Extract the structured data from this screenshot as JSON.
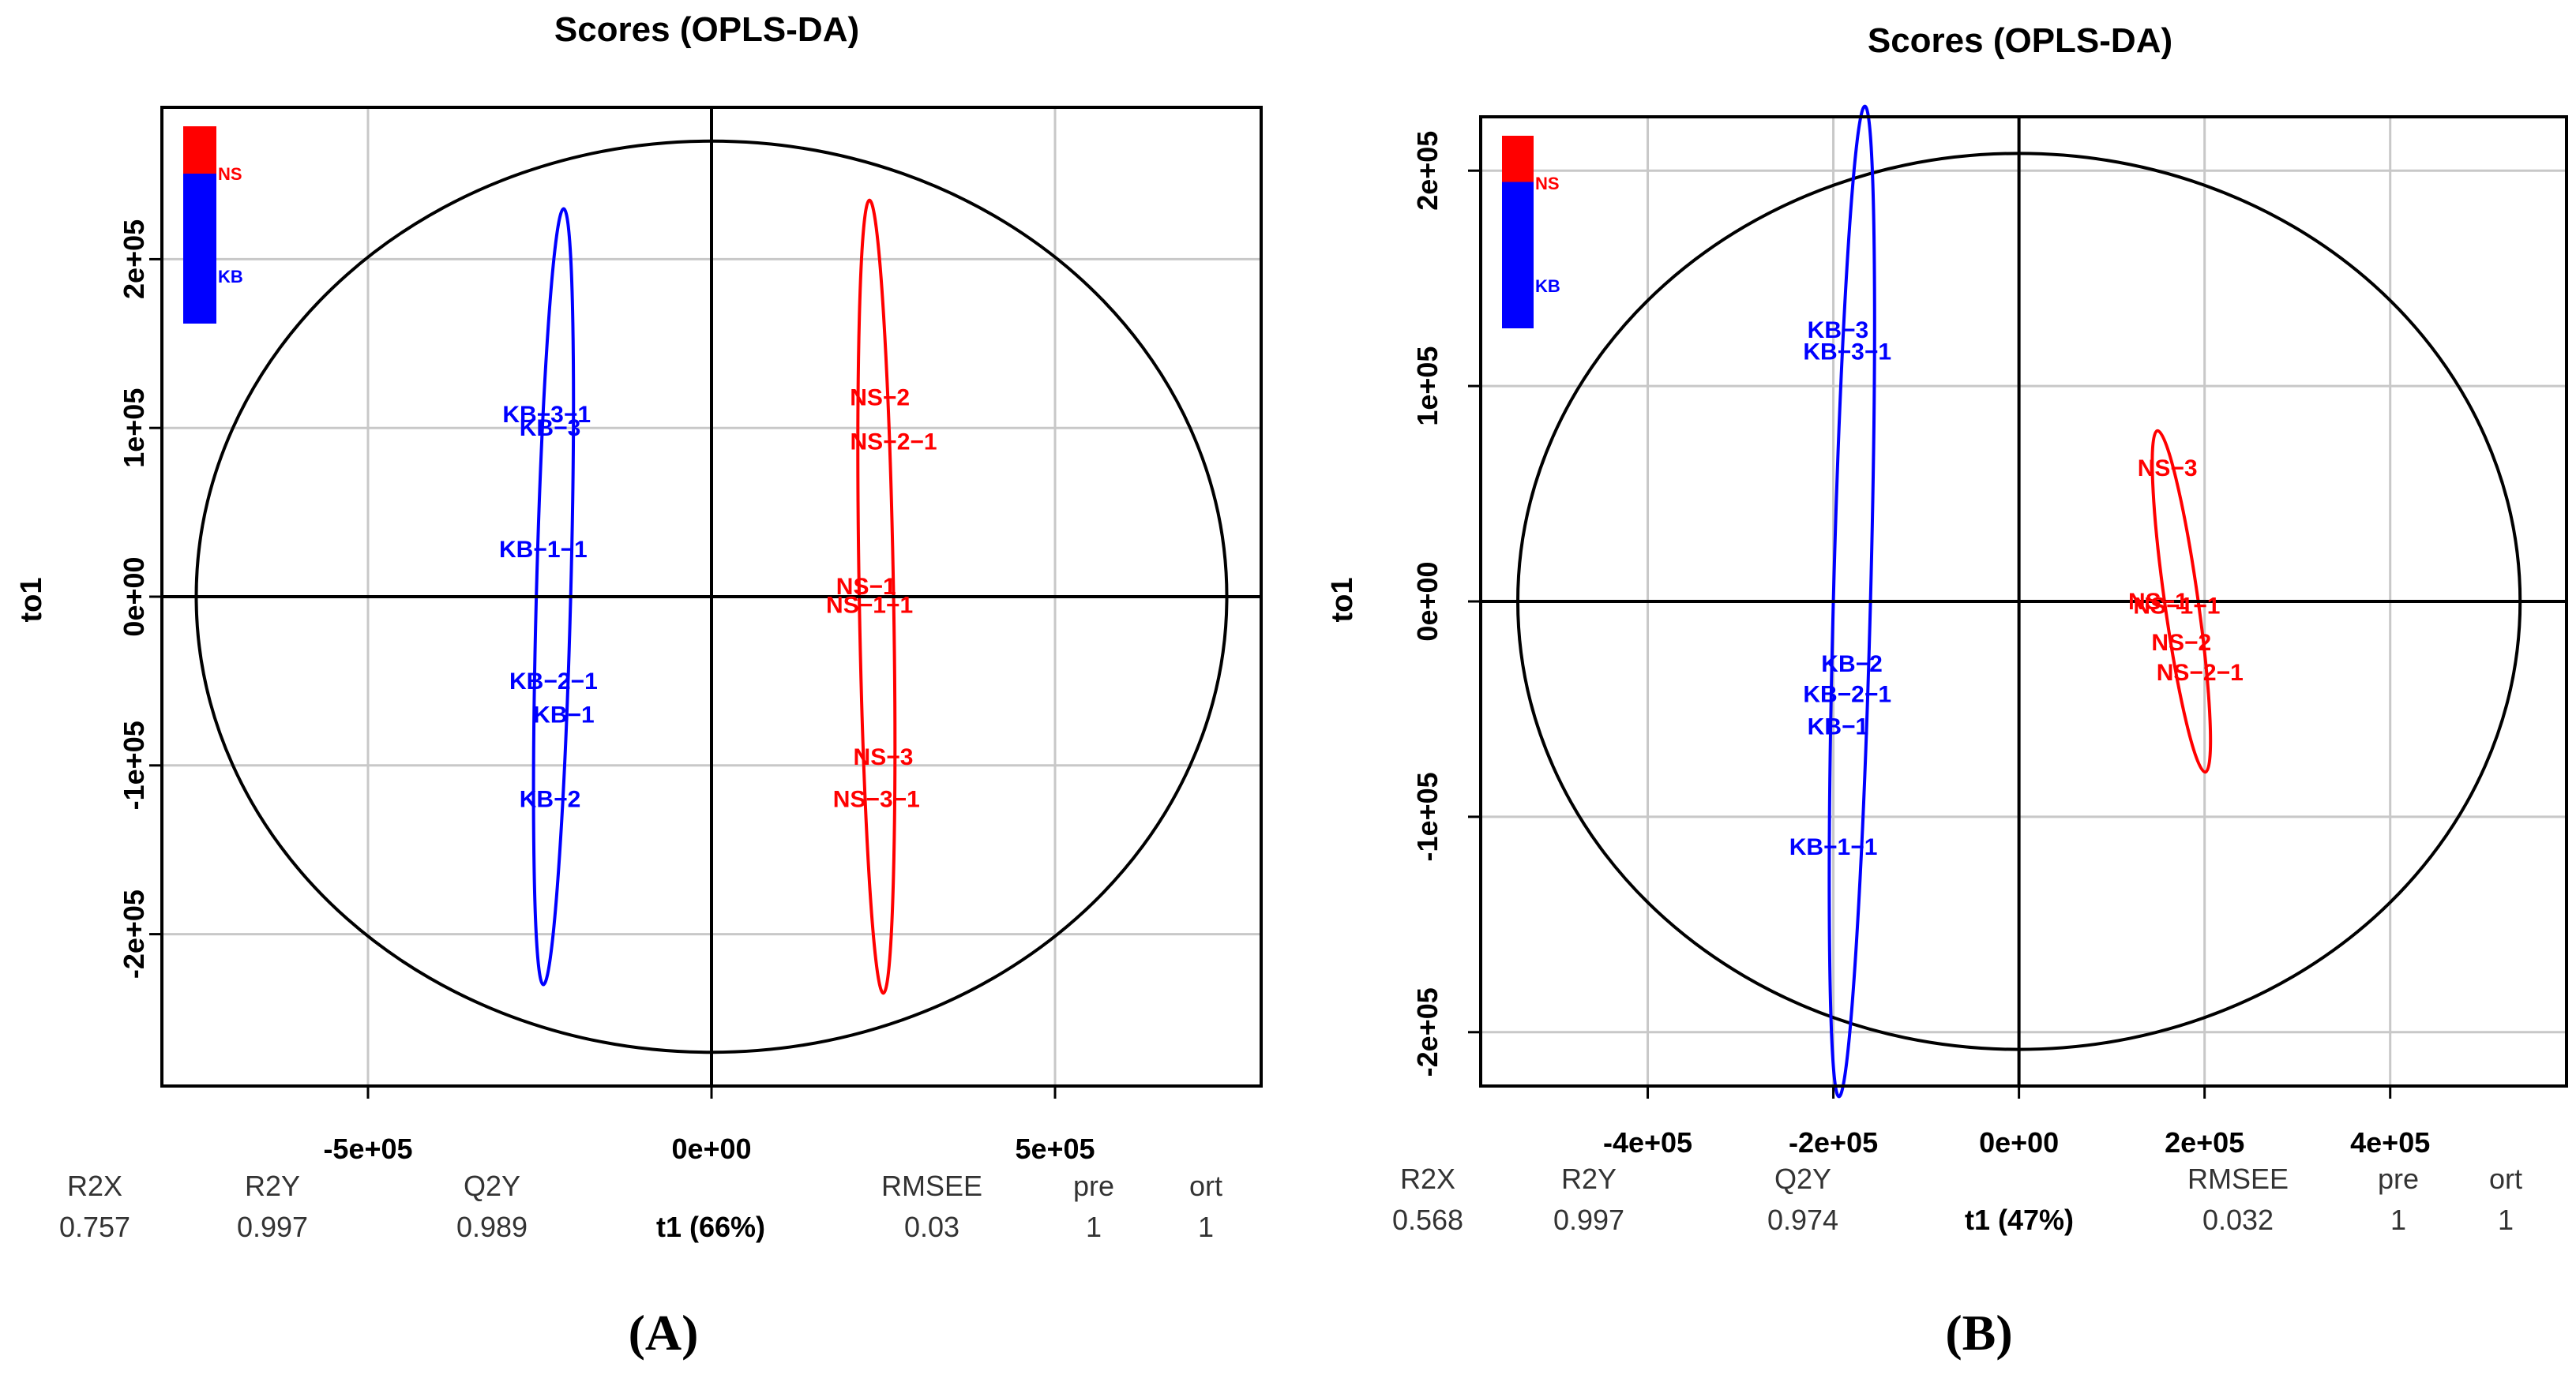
{
  "figure": {
    "panel_labels": [
      "(A)",
      "(B)"
    ]
  },
  "chart_data": [
    {
      "type": "scatter",
      "title": "Scores (OPLS-DA)",
      "xlabel": "t1 (66%)",
      "ylabel": "to1",
      "xlim": [
        -800000,
        800000
      ],
      "ylim": [
        -290000,
        290000
      ],
      "x_ticks": [
        -500000,
        0,
        500000
      ],
      "x_tick_labels": [
        "-5e+05",
        "0e+00",
        "5e+05"
      ],
      "y_ticks": [
        -200000,
        -100000,
        0,
        100000,
        200000
      ],
      "y_tick_labels": [
        "-2e+05",
        "-1e+05",
        "0e+00",
        "1e+05",
        "2e+05"
      ],
      "legend": [
        {
          "name": "NS",
          "color": "#ff0000"
        },
        {
          "name": "KB",
          "color": "#0000ff"
        }
      ],
      "series": [
        {
          "name": "KB",
          "color": "#0000ff",
          "points": [
            {
              "label": "KB-3-1",
              "x": -240000,
              "y": 108000
            },
            {
              "label": "KB-3",
              "x": -235000,
              "y": 100000
            },
            {
              "label": "KB-1-1",
              "x": -245000,
              "y": 28000
            },
            {
              "label": "KB-2-1",
              "x": -230000,
              "y": -50000
            },
            {
              "label": "KB-1",
              "x": -215000,
              "y": -70000
            },
            {
              "label": "KB-2",
              "x": -235000,
              "y": -120000
            }
          ]
        },
        {
          "name": "NS",
          "color": "#ff0000",
          "points": [
            {
              "label": "NS-2",
              "x": 245000,
              "y": 118000
            },
            {
              "label": "NS-2-1",
              "x": 265000,
              "y": 92000
            },
            {
              "label": "NS-1",
              "x": 225000,
              "y": 6000
            },
            {
              "label": "NS-1-1",
              "x": 230000,
              "y": -5000
            },
            {
              "label": "NS-3",
              "x": 250000,
              "y": -95000
            },
            {
              "label": "NS-3-1",
              "x": 240000,
              "y": -120000
            }
          ]
        }
      ],
      "group_ellipses": [
        {
          "group": "KB",
          "color": "#0000ff",
          "cx": -230000,
          "cy": 0,
          "rx": 25000,
          "ry": 230000
        },
        {
          "group": "NS",
          "color": "#ff0000",
          "cx": 240000,
          "cy": 0,
          "rx": 25000,
          "ry": 235000
        }
      ],
      "hotelling_ellipse": {
        "rx": 750000,
        "ry": 270000
      },
      "metrics": [
        {
          "name": "R2X",
          "value": "0.757"
        },
        {
          "name": "R2Y",
          "value": "0.997"
        },
        {
          "name": "Q2Y",
          "value": "0.989"
        },
        {
          "name": "RMSEE",
          "value": "0.03"
        },
        {
          "name": "pre",
          "value": "1"
        },
        {
          "name": "ort",
          "value": "1"
        }
      ]
    },
    {
      "type": "scatter",
      "title": "Scores (OPLS-DA)",
      "xlabel": "t1 (47%)",
      "ylabel": "to1",
      "xlim": [
        -580000,
        590000
      ],
      "ylim": [
        -225000,
        225000
      ],
      "x_ticks": [
        -400000,
        -200000,
        0,
        200000,
        400000
      ],
      "x_tick_labels": [
        "-4e+05",
        "-2e+05",
        "0e+00",
        "2e+05",
        "4e+05"
      ],
      "y_ticks": [
        -200000,
        -100000,
        0,
        100000,
        200000
      ],
      "y_tick_labels": [
        "-2e+05",
        "-1e+05",
        "0e+00",
        "1e+05",
        "2e+05"
      ],
      "legend": [
        {
          "name": "NS",
          "color": "#ff0000"
        },
        {
          "name": "KB",
          "color": "#0000ff"
        }
      ],
      "series": [
        {
          "name": "KB",
          "color": "#0000ff",
          "points": [
            {
              "label": "KB-3",
              "x": -195000,
              "y": 126000
            },
            {
              "label": "KB-3-1",
              "x": -185000,
              "y": 116000
            },
            {
              "label": "KB-2",
              "x": -180000,
              "y": -29000
            },
            {
              "label": "KB-2-1",
              "x": -185000,
              "y": -43000
            },
            {
              "label": "KB-1",
              "x": -195000,
              "y": -58000
            },
            {
              "label": "KB-1-1",
              "x": -200000,
              "y": -114000
            }
          ]
        },
        {
          "name": "NS",
          "color": "#ff0000",
          "points": [
            {
              "label": "NS-3",
              "x": 160000,
              "y": 62000
            },
            {
              "label": "NS-1",
              "x": 150000,
              "y": 0
            },
            {
              "label": "NS-1-1",
              "x": 170000,
              "y": -2000
            },
            {
              "label": "NS-2",
              "x": 175000,
              "y": -19000
            },
            {
              "label": "NS-2-1",
              "x": 195000,
              "y": -33000
            }
          ]
        }
      ],
      "group_ellipses": [
        {
          "group": "KB",
          "color": "#0000ff",
          "cx": -180000,
          "cy": 0,
          "rx": 20000,
          "ry": 230000
        },
        {
          "group": "NS",
          "color": "#ff0000",
          "cx": 175000,
          "cy": 0,
          "rx": 18000,
          "ry": 80000
        }
      ],
      "hotelling_ellipse": {
        "rx": 540000,
        "ry": 208000
      },
      "metrics": [
        {
          "name": "R2X",
          "value": "0.568"
        },
        {
          "name": "R2Y",
          "value": "0.997"
        },
        {
          "name": "Q2Y",
          "value": "0.974"
        },
        {
          "name": "RMSEE",
          "value": "0.032"
        },
        {
          "name": "pre",
          "value": "1"
        },
        {
          "name": "ort",
          "value": "1"
        }
      ]
    }
  ]
}
